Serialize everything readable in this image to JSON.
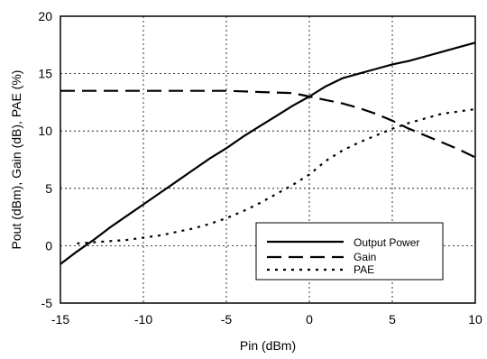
{
  "chart_data": {
    "type": "line",
    "xlabel": "Pin (dBm)",
    "ylabel": "Pout (dBm), Gain (dB), PAE (%)",
    "xlim": [
      -15,
      10
    ],
    "ylim": [
      -5,
      20
    ],
    "x_ticks": [
      -15,
      -10,
      -5,
      0,
      5,
      10
    ],
    "y_ticks": [
      -5,
      0,
      5,
      10,
      15,
      20
    ],
    "x_tick_labels": [
      "-15",
      "-10",
      "-5",
      "0",
      "5",
      "10"
    ],
    "y_tick_labels": [
      "-5",
      "0",
      "5",
      "10",
      "15",
      "20"
    ],
    "grid": true,
    "legend_position": "bottom-right",
    "series": [
      {
        "name": "Output Power",
        "style": "solid",
        "color": "#000000",
        "x": [
          -15,
          -14,
          -13,
          -12,
          -11,
          -10,
          -9,
          -8,
          -7,
          -6,
          -5,
          -4,
          -3,
          -2,
          -1,
          0,
          1,
          2,
          3,
          4,
          5,
          6,
          7,
          8,
          9,
          10
        ],
        "y": [
          -1.6,
          -0.5,
          0.5,
          1.6,
          2.6,
          3.6,
          4.6,
          5.6,
          6.6,
          7.6,
          8.5,
          9.5,
          10.4,
          11.3,
          12.2,
          13.0,
          13.9,
          14.6,
          15.0,
          15.4,
          15.8,
          16.1,
          16.5,
          16.9,
          17.3,
          17.7
        ]
      },
      {
        "name": "Gain",
        "style": "dashed",
        "color": "#000000",
        "x": [
          -15,
          -14,
          -13,
          -12,
          -11,
          -10,
          -9,
          -8,
          -7,
          -6,
          -5,
          -4,
          -3,
          -2,
          -1,
          0,
          1,
          2,
          3,
          4,
          5,
          6,
          7,
          8,
          9,
          10
        ],
        "y": [
          13.5,
          13.5,
          13.5,
          13.5,
          13.5,
          13.5,
          13.5,
          13.5,
          13.5,
          13.5,
          13.5,
          13.45,
          13.4,
          13.35,
          13.3,
          13.0,
          12.7,
          12.4,
          12.0,
          11.5,
          10.9,
          10.2,
          9.6,
          9.0,
          8.4,
          7.7
        ]
      },
      {
        "name": "PAE",
        "style": "dotted",
        "color": "#000000",
        "x": [
          -14,
          -13,
          -12,
          -11,
          -10,
          -9,
          -8,
          -7,
          -6,
          -5,
          -4,
          -3,
          -2,
          -1,
          0,
          1,
          2,
          3,
          4,
          5,
          6,
          7,
          8,
          9,
          10
        ],
        "y": [
          0.2,
          0.3,
          0.4,
          0.5,
          0.7,
          0.9,
          1.2,
          1.5,
          1.9,
          2.4,
          3.0,
          3.7,
          4.5,
          5.3,
          6.2,
          7.4,
          8.3,
          9.0,
          9.6,
          10.2,
          10.7,
          11.1,
          11.5,
          11.7,
          11.9
        ]
      }
    ]
  }
}
